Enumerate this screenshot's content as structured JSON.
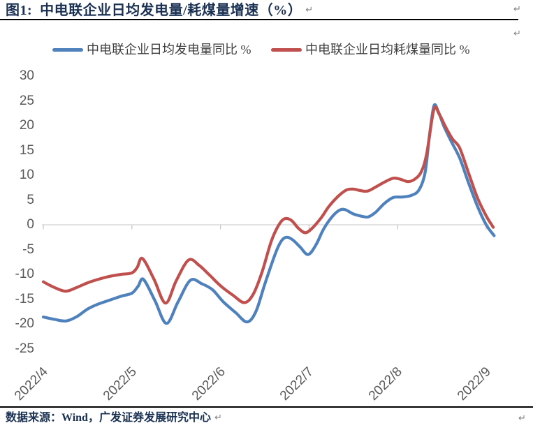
{
  "title": "图1:  中电联企业日均发电量/耗煤量增速（%）",
  "footer": "数据来源：Wind，广发证券发展研究中心",
  "paragraph_mark": "↵",
  "colors": {
    "title_text": "#1b3153",
    "rule": "#000000",
    "axis_line": "#d9d9d9",
    "axis_tick": "#c9c9c9",
    "tick_label": "#595959",
    "series_generation_blue": "#4F81BD",
    "series_coal_red": "#C0504D",
    "pilcrow": "#808080",
    "background": "#ffffff"
  },
  "chart_data": {
    "type": "line",
    "title": "中电联企业日均发电量/耗煤量增速（%）",
    "legend_position": "top",
    "grid": "zero-line-only",
    "x_axis": {
      "tick_labels": [
        "2022/4",
        "2022/5",
        "2022/6",
        "2022/7",
        "2022/8",
        "2022/9"
      ],
      "unit": "months since 2022-04-01 (x of each point)",
      "range": [
        0,
        5.15
      ]
    },
    "y_axis": {
      "ticks": [
        30,
        25,
        20,
        15,
        10,
        5,
        0,
        -5,
        -10,
        -15,
        -20,
        -25
      ],
      "range": [
        -25,
        30
      ],
      "unit": "%"
    },
    "series": [
      {
        "name": "中电联企业日均发电量同比 %",
        "color": "#4F81BD",
        "points": [
          [
            0.0,
            -18.6
          ],
          [
            0.13,
            -19.1
          ],
          [
            0.26,
            -19.4
          ],
          [
            0.38,
            -18.5
          ],
          [
            0.5,
            -17.0
          ],
          [
            0.62,
            -16.0
          ],
          [
            0.75,
            -15.2
          ],
          [
            0.88,
            -14.4
          ],
          [
            1.0,
            -13.8
          ],
          [
            1.07,
            -12.4
          ],
          [
            1.13,
            -11.0
          ],
          [
            1.26,
            -15.3
          ],
          [
            1.39,
            -19.9
          ],
          [
            1.52,
            -15.6
          ],
          [
            1.66,
            -11.2
          ],
          [
            1.79,
            -11.9
          ],
          [
            1.91,
            -13.1
          ],
          [
            2.03,
            -15.5
          ],
          [
            2.17,
            -17.7
          ],
          [
            2.3,
            -19.6
          ],
          [
            2.4,
            -17.5
          ],
          [
            2.5,
            -12.0
          ],
          [
            2.62,
            -5.8
          ],
          [
            2.69,
            -3.2
          ],
          [
            2.75,
            -2.5
          ],
          [
            2.82,
            -3.1
          ],
          [
            2.9,
            -4.5
          ],
          [
            2.99,
            -6.0
          ],
          [
            3.08,
            -4.0
          ],
          [
            3.16,
            -1.0
          ],
          [
            3.25,
            1.4
          ],
          [
            3.33,
            2.8
          ],
          [
            3.4,
            3.1
          ],
          [
            3.5,
            2.2
          ],
          [
            3.6,
            1.7
          ],
          [
            3.67,
            1.6
          ],
          [
            3.75,
            2.5
          ],
          [
            3.85,
            4.3
          ],
          [
            3.95,
            5.5
          ],
          [
            4.05,
            5.6
          ],
          [
            4.15,
            5.9
          ],
          [
            4.24,
            7.0
          ],
          [
            4.31,
            10.5
          ],
          [
            4.36,
            18.0
          ],
          [
            4.41,
            24.0
          ],
          [
            4.46,
            22.8
          ],
          [
            4.52,
            20.0
          ],
          [
            4.6,
            17.0
          ],
          [
            4.7,
            13.5
          ],
          [
            4.8,
            8.5
          ],
          [
            4.9,
            3.8
          ],
          [
            5.0,
            0.0
          ],
          [
            5.09,
            -2.2
          ]
        ]
      },
      {
        "name": "中电联企业日均耗煤量同比 %",
        "color": "#C0504D",
        "points": [
          [
            0.0,
            -11.5
          ],
          [
            0.12,
            -12.6
          ],
          [
            0.25,
            -13.4
          ],
          [
            0.37,
            -12.7
          ],
          [
            0.5,
            -11.7
          ],
          [
            0.62,
            -11.0
          ],
          [
            0.75,
            -10.4
          ],
          [
            0.88,
            -10.0
          ],
          [
            1.0,
            -9.7
          ],
          [
            1.06,
            -8.6
          ],
          [
            1.12,
            -6.8
          ],
          [
            1.25,
            -11.0
          ],
          [
            1.38,
            -15.8
          ],
          [
            1.5,
            -11.3
          ],
          [
            1.64,
            -7.1
          ],
          [
            1.76,
            -8.2
          ],
          [
            1.88,
            -10.2
          ],
          [
            2.0,
            -12.3
          ],
          [
            2.14,
            -14.2
          ],
          [
            2.27,
            -15.7
          ],
          [
            2.37,
            -14.0
          ],
          [
            2.47,
            -9.5
          ],
          [
            2.57,
            -3.5
          ],
          [
            2.65,
            -0.3
          ],
          [
            2.72,
            1.2
          ],
          [
            2.8,
            0.9
          ],
          [
            2.88,
            -0.7
          ],
          [
            2.96,
            -1.6
          ],
          [
            3.04,
            -0.6
          ],
          [
            3.14,
            1.5
          ],
          [
            3.22,
            3.6
          ],
          [
            3.32,
            5.6
          ],
          [
            3.42,
            7.0
          ],
          [
            3.5,
            7.2
          ],
          [
            3.58,
            6.9
          ],
          [
            3.66,
            6.8
          ],
          [
            3.75,
            7.6
          ],
          [
            3.85,
            8.6
          ],
          [
            3.95,
            9.4
          ],
          [
            4.03,
            9.2
          ],
          [
            4.12,
            8.7
          ],
          [
            4.2,
            9.3
          ],
          [
            4.27,
            10.8
          ],
          [
            4.33,
            14.5
          ],
          [
            4.41,
            23.3
          ],
          [
            4.47,
            22.3
          ],
          [
            4.54,
            19.8
          ],
          [
            4.62,
            17.3
          ],
          [
            4.7,
            15.5
          ],
          [
            4.8,
            10.5
          ],
          [
            4.9,
            5.5
          ],
          [
            5.0,
            1.8
          ],
          [
            5.08,
            -0.5
          ]
        ]
      }
    ]
  }
}
